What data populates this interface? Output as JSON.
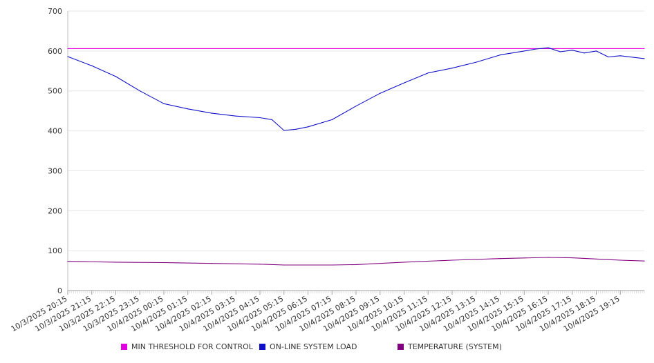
{
  "chart_data": {
    "type": "line",
    "ylim": [
      0,
      700
    ],
    "yticks": [
      0,
      100,
      200,
      300,
      400,
      500,
      600,
      700
    ],
    "grid": true,
    "legend_position": "bottom",
    "x_start": "10/3/2025 20:15",
    "x_end": "10/4/2025 20:15",
    "x_tick_labels": [
      "10/3/2025 20:15",
      "10/3/2025 21:15",
      "10/3/2025 22:15",
      "10/3/2025 23:15",
      "10/4/2025 00:15",
      "10/4/2025 01:15",
      "10/4/2025 02:15",
      "10/4/2025 03:15",
      "10/4/2025 04:15",
      "10/4/2025 05:15",
      "10/4/2025 06:15",
      "10/4/2025 07:15",
      "10/4/2025 08:15",
      "10/4/2025 09:15",
      "10/4/2025 10:15",
      "10/4/2025 11:15",
      "10/4/2025 12:15",
      "10/4/2025 13:15",
      "10/4/2025 14:15",
      "10/4/2025 15:15",
      "10/4/2025 16:15",
      "10/4/2025 17:15",
      "10/4/2025 18:15",
      "10/4/2025 19:15"
    ],
    "series": [
      {
        "name": "MIN THRESHOLD FOR CONTROL",
        "color": "#e000e0",
        "x": [
          "10/3/2025 20:15",
          "10/4/2025 20:15"
        ],
        "values": [
          606,
          606
        ]
      },
      {
        "name": "ON-LINE SYSTEM LOAD",
        "color": "#1010c8",
        "x": [
          "10/3/2025 20:15",
          "10/3/2025 21:15",
          "10/3/2025 22:15",
          "10/3/2025 23:15",
          "10/4/2025 00:15",
          "10/4/2025 01:15",
          "10/4/2025 02:15",
          "10/4/2025 03:15",
          "10/4/2025 04:15",
          "10/4/2025 04:45",
          "10/4/2025 05:15",
          "10/4/2025 05:45",
          "10/4/2025 06:15",
          "10/4/2025 07:15",
          "10/4/2025 08:15",
          "10/4/2025 09:15",
          "10/4/2025 10:15",
          "10/4/2025 11:15",
          "10/4/2025 12:15",
          "10/4/2025 13:15",
          "10/4/2025 14:15",
          "10/4/2025 15:15",
          "10/4/2025 15:45",
          "10/4/2025 16:15",
          "10/4/2025 16:45",
          "10/4/2025 17:15",
          "10/4/2025 17:45",
          "10/4/2025 18:15",
          "10/4/2025 18:45",
          "10/4/2025 19:15",
          "10/4/2025 20:15"
        ],
        "values": [
          586,
          563,
          536,
          500,
          468,
          455,
          444,
          437,
          433,
          428,
          401,
          404,
          410,
          428,
          462,
          494,
          520,
          545,
          557,
          572,
          590,
          600,
          605,
          608,
          598,
          602,
          595,
          600,
          585,
          588,
          581
        ]
      },
      {
        "name": "TEMPERATURE (SYSTEM)",
        "color": "#800080",
        "x": [
          "10/3/2025 20:15",
          "10/3/2025 22:15",
          "10/4/2025 00:15",
          "10/4/2025 02:15",
          "10/4/2025 04:15",
          "10/4/2025 05:15",
          "10/4/2025 07:15",
          "10/4/2025 08:15",
          "10/4/2025 10:15",
          "10/4/2025 12:15",
          "10/4/2025 14:15",
          "10/4/2025 16:15",
          "10/4/2025 17:15",
          "10/4/2025 18:15",
          "10/4/2025 19:15",
          "10/4/2025 20:15"
        ],
        "values": [
          73,
          71,
          70,
          68,
          66,
          64,
          64,
          65,
          71,
          76,
          80,
          83,
          82,
          79,
          76,
          74
        ]
      }
    ]
  }
}
